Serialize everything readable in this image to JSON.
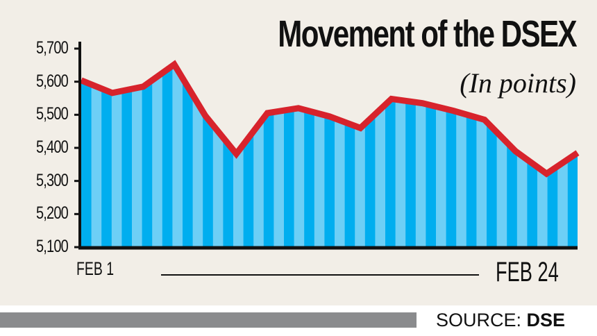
{
  "chart_data": {
    "type": "area",
    "title": "Movement of the DSEX",
    "subtitle": "(In points)",
    "x_start_label": "FEB 1",
    "x_end_label": "FEB 24",
    "ylim": [
      5100,
      5700
    ],
    "yticks": [
      "5,700",
      "5,600",
      "5,500",
      "5,400",
      "5,300",
      "5,200",
      "5,100"
    ],
    "ytick_values": [
      5700,
      5600,
      5500,
      5400,
      5300,
      5200,
      5100
    ],
    "values": [
      5604,
      5566,
      5585,
      5652,
      5497,
      5382,
      5505,
      5520,
      5495,
      5460,
      5548,
      5535,
      5512,
      5485,
      5390,
      5322,
      5385
    ],
    "grid": false,
    "colors": {
      "line": "#d7232c",
      "fill_dark": "#00aeef",
      "fill_light": "#6dcff6",
      "background": "#f2eee7"
    }
  },
  "source": {
    "label": "SOURCE:",
    "name": "DSE"
  }
}
